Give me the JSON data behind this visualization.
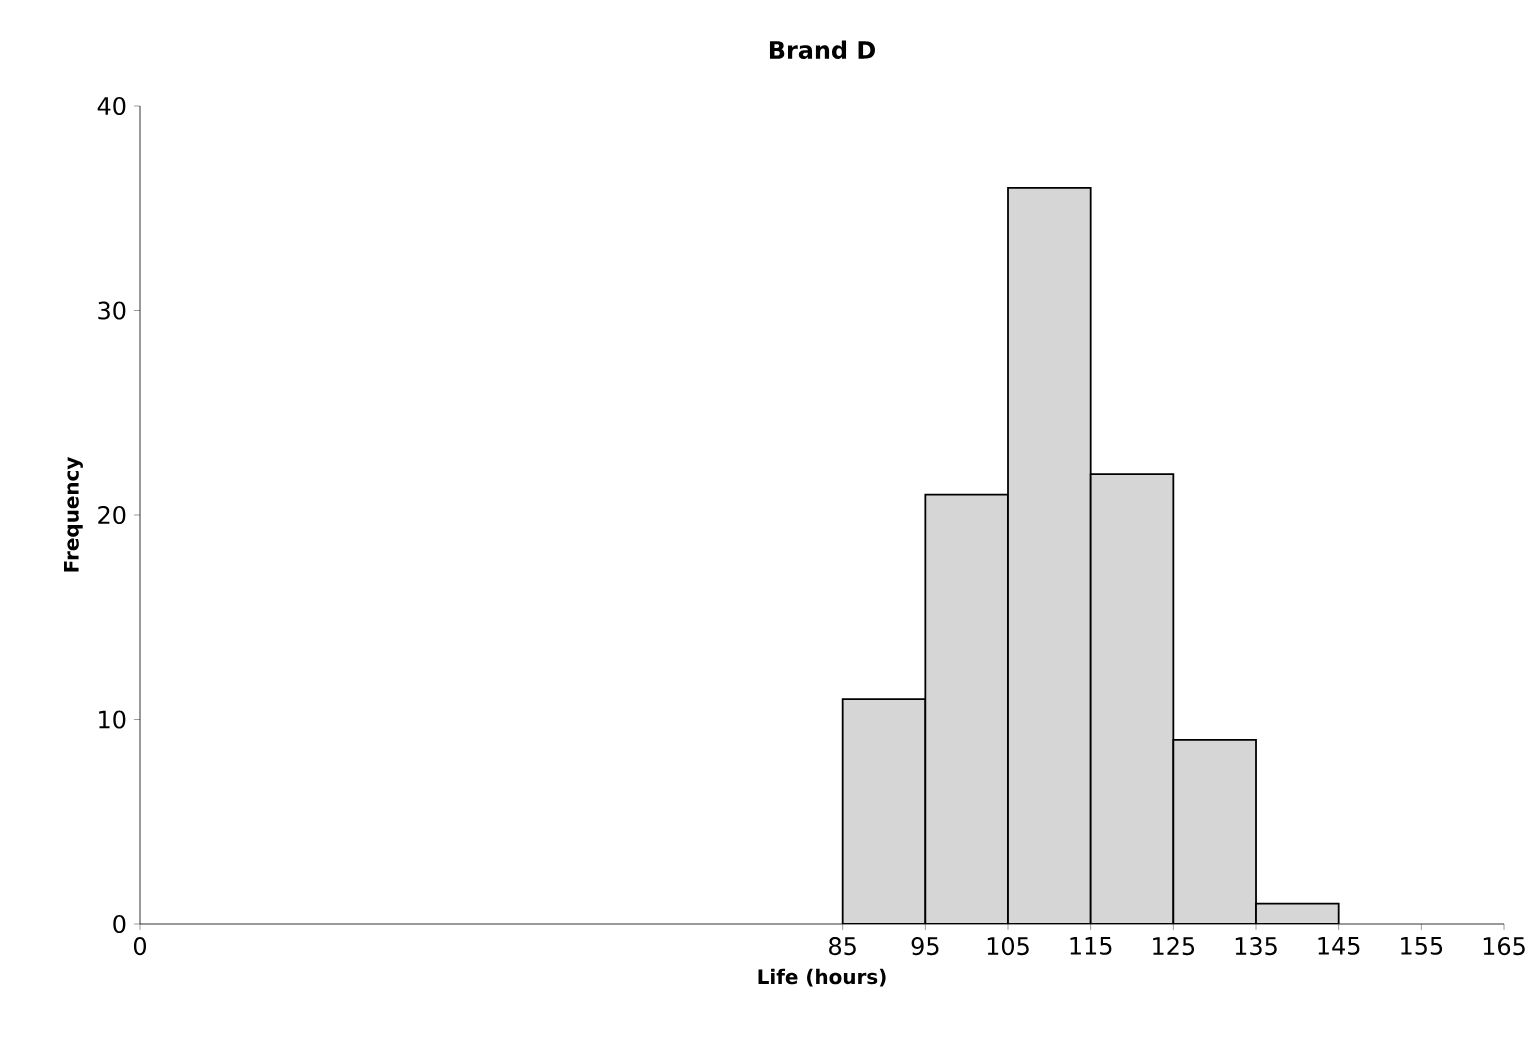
{
  "chart_data": {
    "type": "histogram",
    "title": "Brand D",
    "xlabel": "Life (hours)",
    "ylabel": "Frequency",
    "bins": [
      85,
      95,
      105,
      115,
      125,
      135,
      145
    ],
    "values": [
      11,
      21,
      36,
      22,
      9,
      1
    ],
    "color": "#d6d6d6",
    "xlim": [
      0,
      165
    ],
    "xticks": [
      0,
      85,
      95,
      105,
      115,
      125,
      135,
      145,
      155,
      165
    ],
    "ylim": [
      0,
      40
    ],
    "yticks": [
      0,
      10,
      20,
      30,
      40
    ],
    "grid": false
  }
}
